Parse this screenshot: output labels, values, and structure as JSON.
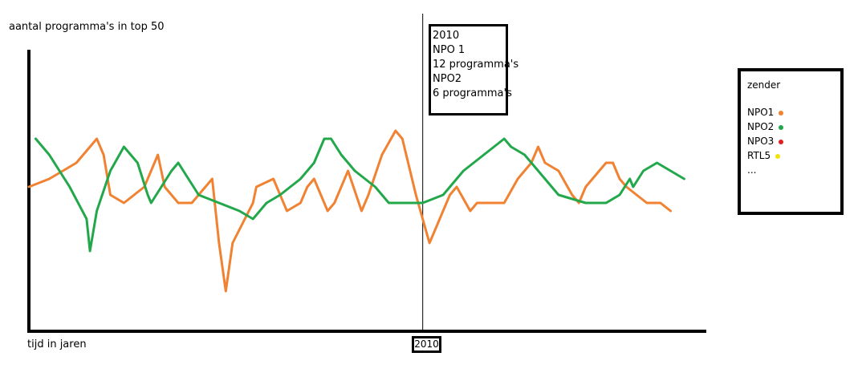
{
  "chart_data": {
    "type": "line",
    "ylabel": "aantal programma's in top 50",
    "xlabel": "tijd in jaren",
    "x_ticks": [
      "2010"
    ],
    "series": [
      {
        "name": "NPO1",
        "color": "#f08232",
        "points": [
          [
            0,
            18
          ],
          [
            3,
            19
          ],
          [
            7,
            21
          ],
          [
            10,
            24
          ],
          [
            11,
            22
          ],
          [
            12,
            17
          ],
          [
            14,
            16
          ],
          [
            17,
            18
          ],
          [
            19,
            22
          ],
          [
            20,
            18
          ],
          [
            22,
            16
          ],
          [
            24,
            16
          ],
          [
            27,
            19
          ],
          [
            28,
            11
          ],
          [
            29,
            5
          ],
          [
            30,
            11
          ],
          [
            33,
            16
          ],
          [
            33.5,
            18
          ],
          [
            36,
            19
          ],
          [
            38,
            15
          ],
          [
            40,
            16
          ],
          [
            41,
            18
          ],
          [
            42,
            19
          ],
          [
            44,
            15
          ],
          [
            45,
            16
          ],
          [
            47,
            20
          ],
          [
            49,
            15
          ],
          [
            50,
            17
          ],
          [
            52,
            22
          ],
          [
            54,
            25
          ],
          [
            55,
            24
          ],
          [
            57,
            17
          ],
          [
            59,
            11
          ],
          [
            60,
            13
          ],
          [
            62,
            17
          ],
          [
            63,
            18
          ],
          [
            65,
            15
          ],
          [
            66,
            16
          ],
          [
            68,
            16
          ],
          [
            70,
            16
          ],
          [
            72,
            19
          ],
          [
            74,
            21
          ],
          [
            75,
            23
          ],
          [
            76,
            21
          ],
          [
            78,
            20
          ],
          [
            80,
            17
          ],
          [
            81,
            16
          ],
          [
            82,
            18
          ],
          [
            85,
            21
          ],
          [
            86,
            21
          ],
          [
            87,
            19
          ],
          [
            88,
            18
          ],
          [
            91,
            16
          ],
          [
            93,
            16
          ],
          [
            94.5,
            15
          ]
        ]
      },
      {
        "name": "NPO2",
        "color": "#22a84a",
        "points": [
          [
            1,
            24
          ],
          [
            3,
            22
          ],
          [
            6,
            18
          ],
          [
            8.5,
            14
          ],
          [
            9,
            10
          ],
          [
            10,
            15
          ],
          [
            12,
            20
          ],
          [
            14,
            23
          ],
          [
            16,
            21
          ],
          [
            17.5,
            17
          ],
          [
            18,
            16
          ],
          [
            21,
            20
          ],
          [
            22,
            21
          ],
          [
            25,
            17
          ],
          [
            28,
            16
          ],
          [
            31,
            15
          ],
          [
            33,
            14
          ],
          [
            35,
            16
          ],
          [
            37,
            17
          ],
          [
            40,
            19
          ],
          [
            42,
            21
          ],
          [
            43.5,
            24
          ],
          [
            44.5,
            24
          ],
          [
            46,
            22
          ],
          [
            48,
            20
          ],
          [
            51,
            18
          ],
          [
            53,
            16
          ],
          [
            58,
            16
          ],
          [
            61,
            17
          ],
          [
            64,
            20
          ],
          [
            67,
            22
          ],
          [
            70,
            24
          ],
          [
            71,
            23
          ],
          [
            73,
            22
          ],
          [
            76,
            19
          ],
          [
            78,
            17
          ],
          [
            82,
            16
          ],
          [
            85,
            16
          ],
          [
            87,
            17
          ],
          [
            88.5,
            19
          ],
          [
            89,
            18
          ],
          [
            90.5,
            20
          ],
          [
            92.5,
            21
          ],
          [
            94.5,
            20
          ],
          [
            96.5,
            19
          ]
        ]
      },
      {
        "name": "NPO3",
        "color": "#e02020",
        "points": []
      },
      {
        "name": "RTL5",
        "color": "#f2e20c",
        "points": []
      }
    ],
    "annotation": {
      "x": 58,
      "lines": [
        "2010",
        "NPO 1",
        "12 programma's",
        "NPO2",
        "6 programma's"
      ]
    },
    "legend": {
      "title": "zender",
      "items": [
        {
          "label": "NPO1",
          "color": "#f08232"
        },
        {
          "label": "NPO2",
          "color": "#22a84a"
        },
        {
          "label": "NPO3",
          "color": "#e02020"
        },
        {
          "label": "RTL5",
          "color": "#f2e20c"
        },
        {
          "label": "...",
          "color": ""
        }
      ]
    }
  }
}
